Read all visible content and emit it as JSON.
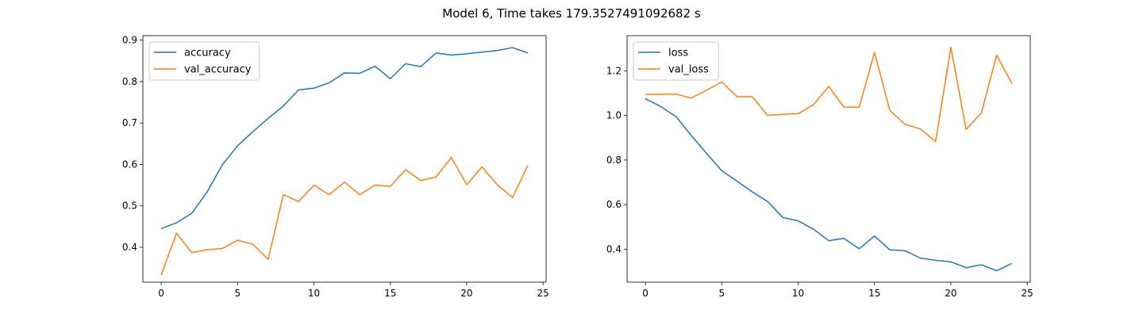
{
  "figure": {
    "title": "Model 6, Time takes 179.3527491092682 s"
  },
  "chart_data": [
    {
      "type": "line",
      "xlim": [
        -1.2,
        25.2
      ],
      "ylim": [
        0.3158,
        0.9108
      ],
      "xticks": [
        0,
        5,
        10,
        15,
        20,
        25
      ],
      "yticks": [
        0.4,
        0.5,
        0.6,
        0.7,
        0.8,
        0.9
      ],
      "ytick_labels": [
        "0.4",
        "0.5",
        "0.6",
        "0.7",
        "0.8",
        "0.9"
      ],
      "legend_placement": "upper-left",
      "grid": false,
      "x": [
        0,
        1,
        2,
        3,
        4,
        5,
        6,
        7,
        8,
        9,
        10,
        11,
        12,
        13,
        14,
        15,
        16,
        17,
        18,
        19,
        20,
        21,
        22,
        23,
        24
      ],
      "series": [
        {
          "name": "accuracy",
          "color": "#1f77b4",
          "values": [
            0.445,
            0.459,
            0.482,
            0.533,
            0.599,
            0.645,
            0.679,
            0.711,
            0.741,
            0.78,
            0.784,
            0.797,
            0.821,
            0.82,
            0.837,
            0.807,
            0.843,
            0.836,
            0.869,
            0.864,
            0.867,
            0.871,
            0.875,
            0.882,
            0.869
          ]
        },
        {
          "name": "val_accuracy",
          "color": "#ff7f0e",
          "values": [
            0.333,
            0.434,
            0.387,
            0.394,
            0.397,
            0.417,
            0.407,
            0.371,
            0.527,
            0.51,
            0.55,
            0.527,
            0.557,
            0.527,
            0.55,
            0.547,
            0.587,
            0.561,
            0.57,
            0.617,
            0.551,
            0.594,
            0.551,
            0.52,
            0.597
          ]
        }
      ]
    },
    {
      "type": "line",
      "xlim": [
        -1.2,
        25.2
      ],
      "ylim": [
        0.252,
        1.358
      ],
      "xticks": [
        0,
        5,
        10,
        15,
        20,
        25
      ],
      "yticks": [
        0.4,
        0.6,
        0.8,
        1.0,
        1.2
      ],
      "ytick_labels": [
        "0.4",
        "0.6",
        "0.8",
        "1.0",
        "1.2"
      ],
      "legend_placement": "upper-left",
      "grid": false,
      "x": [
        0,
        1,
        2,
        3,
        4,
        5,
        6,
        7,
        8,
        9,
        10,
        11,
        12,
        13,
        14,
        15,
        16,
        17,
        18,
        19,
        20,
        21,
        22,
        23,
        24
      ],
      "series": [
        {
          "name": "loss",
          "color": "#1f77b4",
          "values": [
            1.075,
            1.04,
            0.995,
            0.91,
            0.83,
            0.752,
            0.705,
            0.657,
            0.614,
            0.542,
            0.527,
            0.49,
            0.438,
            0.448,
            0.402,
            0.459,
            0.397,
            0.393,
            0.36,
            0.35,
            0.343,
            0.317,
            0.33,
            0.303,
            0.336
          ]
        },
        {
          "name": "val_loss",
          "color": "#ff7f0e",
          "values": [
            1.095,
            1.095,
            1.096,
            1.078,
            1.113,
            1.15,
            1.084,
            1.084,
            1.0,
            1.005,
            1.008,
            1.048,
            1.13,
            1.037,
            1.037,
            1.283,
            1.023,
            0.96,
            0.94,
            0.883,
            1.307,
            0.937,
            1.012,
            1.27,
            1.143
          ]
        }
      ]
    }
  ]
}
